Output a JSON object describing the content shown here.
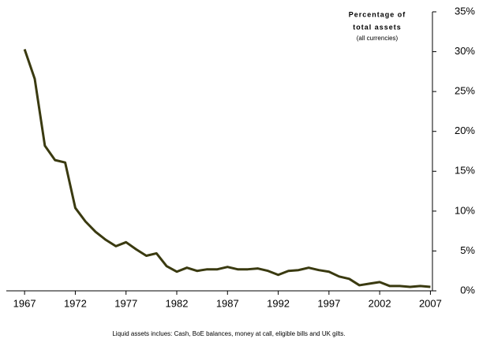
{
  "chart_data": {
    "type": "line",
    "annotations": [
      "Percentage of",
      "total assets",
      "(all currencies)"
    ],
    "note": "Liquid assets inclues: Cash, BoE balances, money at call, eligible bills and UK gilts.",
    "x": [
      1967,
      1968,
      1969,
      1970,
      1971,
      1972,
      1973,
      1974,
      1975,
      1976,
      1977,
      1978,
      1979,
      1980,
      1981,
      1982,
      1983,
      1984,
      1985,
      1986,
      1987,
      1988,
      1989,
      1990,
      1991,
      1992,
      1993,
      1994,
      1995,
      1996,
      1997,
      1998,
      1999,
      2000,
      2001,
      2002,
      2003,
      2004,
      2005,
      2006,
      2007
    ],
    "series": [
      {
        "color": "#3a3a10",
        "values": [
          30.3,
          26.6,
          18.2,
          16.4,
          16.1,
          10.4,
          8.7,
          7.4,
          6.4,
          5.6,
          6.1,
          5.2,
          4.4,
          4.7,
          3.1,
          2.4,
          2.9,
          2.5,
          2.7,
          2.7,
          3.0,
          2.7,
          2.7,
          2.8,
          2.5,
          2.0,
          2.5,
          2.6,
          2.9,
          2.6,
          2.4,
          1.8,
          1.5,
          0.7,
          0.9,
          1.1,
          0.6,
          0.6,
          0.5,
          0.6,
          0.5
        ]
      }
    ],
    "xlim": [
      1965.2,
      2007.2
    ],
    "xticks": [
      1967,
      1972,
      1977,
      1982,
      1987,
      1992,
      1997,
      2002,
      2007
    ],
    "ylim": [
      0,
      35
    ],
    "yticks": [
      {
        "value": 0,
        "label": "0%"
      },
      {
        "value": 5,
        "label": "5%"
      },
      {
        "value": 10,
        "label": "10%"
      },
      {
        "value": 15,
        "label": "15%"
      },
      {
        "value": 20,
        "label": "20%"
      },
      {
        "value": 25,
        "label": "25%"
      },
      {
        "value": 30,
        "label": "30%"
      },
      {
        "value": 35,
        "label": "35%"
      }
    ],
    "y_axis_side": "right"
  }
}
